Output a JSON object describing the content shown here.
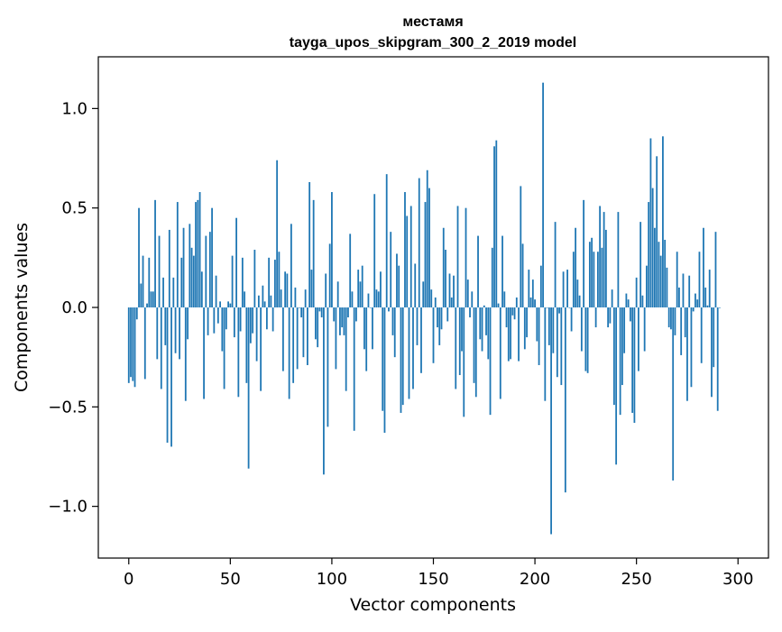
{
  "chart_data": {
    "type": "bar",
    "title_line1": "местамя",
    "title_line2": "tayga_upos_skipgram_300_2_2019 model",
    "xlabel": "Vector components",
    "ylabel": "Components values",
    "xlim": [
      -15,
      315
    ],
    "ylim": [
      -1.26,
      1.26
    ],
    "x_ticks": [
      0,
      50,
      100,
      150,
      200,
      250,
      300
    ],
    "x_tick_labels": [
      "0",
      "50",
      "100",
      "150",
      "200",
      "250",
      "300"
    ],
    "y_ticks": [
      -1.0,
      -0.5,
      0.0,
      0.5,
      1.0
    ],
    "y_tick_labels": [
      "−1.0",
      "−0.5",
      "0.0",
      "0.5",
      "1.0"
    ],
    "bar_color": "#1f77b4",
    "grid": false,
    "values": [
      -0.38,
      -0.35,
      -0.37,
      -0.4,
      -0.06,
      0.5,
      0.12,
      0.26,
      -0.36,
      0.02,
      0.25,
      0.08,
      0.08,
      0.54,
      -0.26,
      0.36,
      -0.41,
      0.15,
      -0.19,
      -0.68,
      0.39,
      -0.7,
      0.15,
      -0.23,
      0.53,
      -0.26,
      0.25,
      0.4,
      -0.47,
      -0.16,
      0.42,
      0.3,
      0.26,
      0.53,
      0.54,
      0.58,
      0.18,
      -0.46,
      0.36,
      -0.14,
      0.38,
      0.5,
      -0.13,
      0.16,
      -0.08,
      0.03,
      -0.22,
      -0.41,
      -0.11,
      0.03,
      0.02,
      0.26,
      -0.15,
      0.45,
      -0.45,
      -0.12,
      0.25,
      0.08,
      -0.38,
      -0.81,
      -0.18,
      -0.13,
      0.29,
      -0.27,
      0.06,
      -0.42,
      0.11,
      0.03,
      -0.11,
      0.25,
      0.06,
      -0.12,
      0.24,
      0.74,
      0.28,
      0.09,
      -0.32,
      0.18,
      0.17,
      -0.46,
      0.42,
      -0.38,
      0.1,
      -0.31,
      0.0,
      -0.05,
      -0.25,
      0.09,
      -0.29,
      0.63,
      0.19,
      0.54,
      -0.16,
      -0.2,
      -0.02,
      -0.05,
      -0.84,
      0.17,
      -0.6,
      0.32,
      0.58,
      -0.07,
      -0.31,
      0.13,
      -0.14,
      -0.1,
      -0.14,
      -0.42,
      -0.05,
      0.37,
      0.08,
      -0.62,
      -0.07,
      0.19,
      0.13,
      0.21,
      -0.21,
      -0.32,
      0.07,
      0.0,
      -0.21,
      0.57,
      0.09,
      0.08,
      0.18,
      -0.52,
      -0.63,
      0.67,
      -0.02,
      0.38,
      -0.14,
      -0.25,
      0.27,
      0.21,
      -0.53,
      -0.49,
      0.58,
      0.46,
      -0.46,
      0.51,
      -0.41,
      0.22,
      -0.19,
      0.65,
      -0.33,
      0.13,
      0.53,
      0.69,
      0.6,
      0.09,
      -0.28,
      0.05,
      -0.1,
      -0.19,
      -0.11,
      0.4,
      0.29,
      -0.07,
      0.17,
      0.05,
      0.16,
      -0.41,
      0.51,
      -0.34,
      -0.22,
      -0.55,
      0.5,
      0.14,
      -0.05,
      0.08,
      -0.38,
      -0.45,
      0.36,
      -0.16,
      -0.22,
      0.01,
      -0.14,
      -0.26,
      -0.54,
      0.3,
      0.81,
      0.84,
      0.02,
      -0.46,
      0.36,
      0.08,
      -0.1,
      -0.27,
      -0.26,
      -0.04,
      -0.06,
      0.05,
      -0.27,
      0.61,
      0.32,
      -0.21,
      -0.15,
      0.19,
      0.05,
      0.14,
      0.04,
      -0.17,
      -0.29,
      0.21,
      1.13,
      -0.47,
      0.0,
      -0.19,
      -1.14,
      -0.23,
      0.43,
      -0.35,
      -0.03,
      -0.39,
      0.18,
      -0.93,
      0.19,
      0.0,
      -0.12,
      0.28,
      0.4,
      0.14,
      0.06,
      -0.22,
      0.54,
      -0.32,
      -0.33,
      0.33,
      0.35,
      0.28,
      -0.1,
      0.28,
      0.51,
      0.3,
      0.48,
      0.39,
      -0.1,
      -0.08,
      0.09,
      -0.49,
      -0.79,
      0.48,
      -0.54,
      -0.39,
      -0.23,
      0.07,
      0.04,
      -0.07,
      -0.53,
      -0.58,
      0.15,
      -0.32,
      0.43,
      0.06,
      -0.22,
      0.21,
      0.53,
      0.85,
      0.6,
      0.4,
      0.76,
      0.33,
      0.26,
      0.86,
      0.34,
      0.2,
      -0.1,
      -0.11,
      -0.87,
      -0.14,
      0.28,
      0.1,
      -0.24,
      0.17,
      -0.15,
      -0.47,
      0.16,
      -0.4,
      -0.02,
      0.07,
      0.04,
      0.28,
      -0.28,
      0.4,
      0.1,
      0.01,
      0.19,
      -0.45,
      -0.3,
      0.38,
      -0.52,
      0.0
    ]
  }
}
